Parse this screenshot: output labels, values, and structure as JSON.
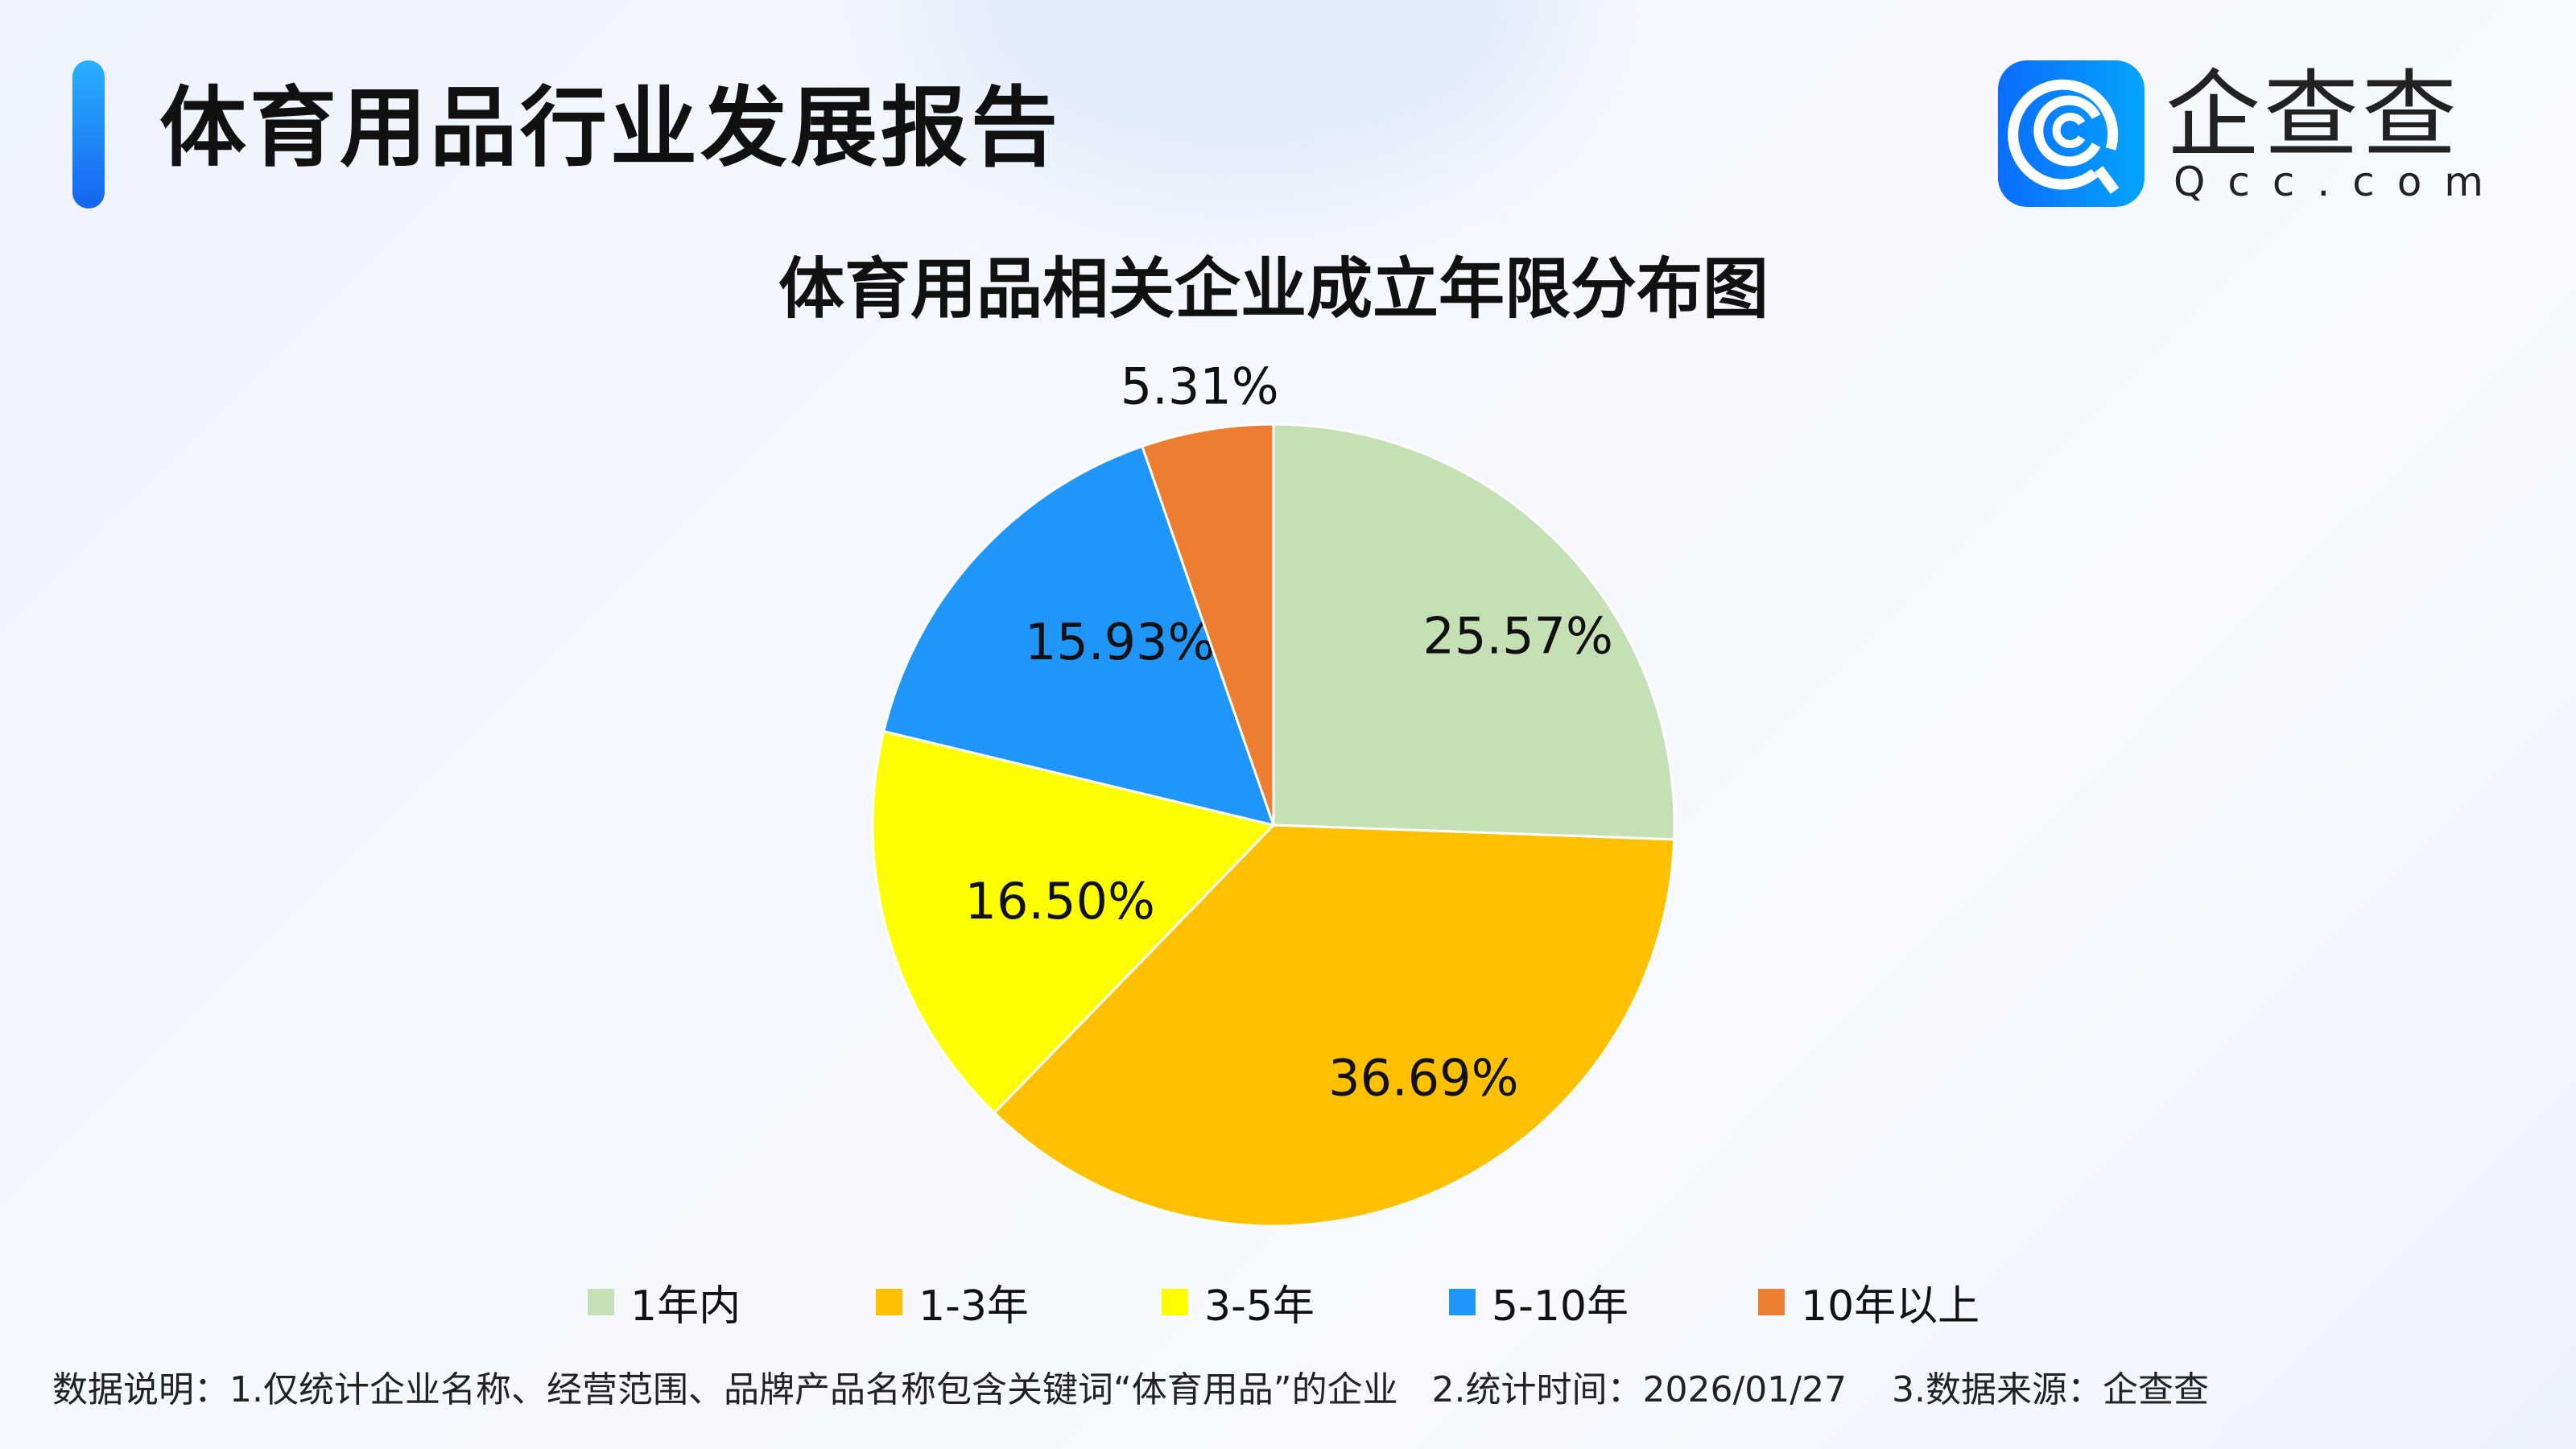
{
  "header": {
    "title": "体育用品行业发展报告"
  },
  "logo": {
    "name_cn": "企查查",
    "name_en": "Qcc.com"
  },
  "chart_data": {
    "type": "pie",
    "title": "体育用品相关企业成立年限分布图",
    "categories": [
      "1年内",
      "1-3年",
      "3-5年",
      "5-10年",
      "10年以上"
    ],
    "values": [
      25.57,
      36.69,
      16.5,
      15.93,
      5.31
    ],
    "labels": [
      "25.57%",
      "36.69%",
      "16.50%",
      "15.93%",
      "5.31%"
    ],
    "colors": [
      "#C5E0B4",
      "#FFC000",
      "#FFFF00",
      "#2196FA",
      "#ED7D31"
    ],
    "start": "12 o'clock",
    "direction": "clockwise",
    "legend": "bottom"
  },
  "footnote": "数据说明：1.仅统计企业名称、经营范围、品牌产品名称包含关键词“体育用品”的企业   2.统计时间：2026/01/27    3.数据来源：企查查"
}
